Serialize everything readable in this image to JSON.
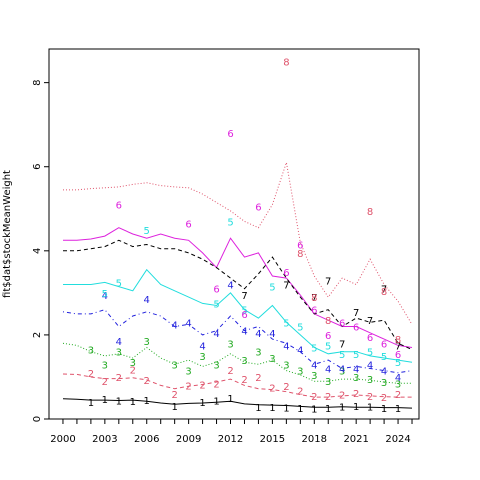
{
  "chart_data": {
    "type": "line",
    "title": "",
    "xlabel": "",
    "ylabel": "fit$dat$stockMeanWeight",
    "xlim": [
      1999,
      2025.5
    ],
    "ylim": [
      0,
      8.8
    ],
    "x_ticks": [
      "2000",
      "2003",
      "2006",
      "2009",
      "2012",
      "2015",
      "2018",
      "2021",
      "2024"
    ],
    "x_tick_values": [
      2000,
      2003,
      2006,
      2009,
      2012,
      2015,
      2018,
      2021,
      2024
    ],
    "y_ticks": [
      "0",
      "2",
      "4",
      "6",
      "8"
    ],
    "y_tick_values": [
      0,
      2,
      4,
      6,
      8
    ],
    "grid": false,
    "legend": "none",
    "series": [
      {
        "label": "1",
        "color": "#000000",
        "line": "solid",
        "fit_x": [
          2000,
          2001,
          2002,
          2003,
          2004,
          2005,
          2006,
          2007,
          2008,
          2009,
          2010,
          2011,
          2012,
          2013,
          2014,
          2015,
          2016,
          2017,
          2018,
          2019,
          2020,
          2021,
          2022,
          2023,
          2024,
          2025
        ],
        "fit_y": [
          0.48,
          0.47,
          0.45,
          0.45,
          0.44,
          0.45,
          0.42,
          0.38,
          0.35,
          0.37,
          0.38,
          0.4,
          0.42,
          0.36,
          0.34,
          0.33,
          0.32,
          0.3,
          0.28,
          0.28,
          0.29,
          0.28,
          0.28,
          0.27,
          0.27,
          0.26
        ],
        "obs_x": [
          2002,
          2003,
          2004,
          2005,
          2006,
          2008,
          2010,
          2011,
          2012,
          2014,
          2015,
          2016,
          2017,
          2018,
          2019,
          2020,
          2021,
          2022,
          2023,
          2024
        ],
        "obs_y": [
          0.4,
          0.48,
          0.44,
          0.43,
          0.45,
          0.31,
          0.41,
          0.44,
          0.5,
          0.29,
          0.28,
          0.27,
          0.26,
          0.25,
          0.26,
          0.3,
          0.31,
          0.3,
          0.26,
          0.26
        ]
      },
      {
        "label": "2",
        "color": "#DF536B",
        "line": "dashed",
        "fit_x": [
          2000,
          2001,
          2002,
          2003,
          2004,
          2005,
          2006,
          2007,
          2008,
          2009,
          2010,
          2011,
          2012,
          2013,
          2014,
          2015,
          2016,
          2017,
          2018,
          2019,
          2020,
          2021,
          2022,
          2023,
          2024,
          2025
        ],
        "fit_y": [
          1.07,
          1.06,
          1.0,
          0.96,
          0.96,
          0.98,
          0.93,
          0.8,
          0.72,
          0.78,
          0.82,
          0.88,
          0.95,
          0.8,
          0.72,
          0.7,
          0.65,
          0.58,
          0.52,
          0.52,
          0.55,
          0.57,
          0.55,
          0.53,
          0.52,
          0.52
        ],
        "obs_x": [
          2002,
          2003,
          2004,
          2005,
          2006,
          2008,
          2009,
          2010,
          2011,
          2012,
          2013,
          2014,
          2015,
          2016,
          2017,
          2018,
          2019,
          2020,
          2021,
          2022,
          2023,
          2024
        ],
        "obs_y": [
          1.1,
          0.9,
          1.0,
          1.18,
          0.93,
          0.6,
          0.8,
          0.82,
          0.85,
          1.17,
          0.95,
          1.0,
          0.75,
          0.78,
          0.68,
          0.55,
          0.55,
          0.58,
          0.62,
          0.55,
          0.52,
          0.6
        ]
      },
      {
        "label": "3",
        "color": "#22AA22",
        "line": "dotted",
        "fit_x": [
          2000,
          2001,
          2002,
          2003,
          2004,
          2005,
          2006,
          2007,
          2008,
          2009,
          2010,
          2011,
          2012,
          2013,
          2014,
          2015,
          2016,
          2017,
          2018,
          2019,
          2020,
          2021,
          2022,
          2023,
          2024,
          2025
        ],
        "fit_y": [
          1.8,
          1.75,
          1.6,
          1.5,
          1.55,
          1.45,
          1.7,
          1.45,
          1.3,
          1.4,
          1.25,
          1.35,
          1.55,
          1.35,
          1.3,
          1.4,
          1.15,
          1.05,
          0.9,
          0.9,
          0.95,
          0.95,
          0.92,
          0.88,
          0.85,
          0.85
        ],
        "obs_x": [
          2002,
          2003,
          2004,
          2005,
          2006,
          2008,
          2009,
          2010,
          2011,
          2012,
          2013,
          2014,
          2015,
          2016,
          2017,
          2018,
          2019,
          2020,
          2021,
          2022,
          2023,
          2024
        ],
        "obs_y": [
          1.65,
          1.3,
          1.6,
          1.35,
          1.85,
          1.3,
          1.15,
          1.5,
          1.3,
          1.8,
          1.4,
          1.6,
          1.45,
          1.3,
          1.15,
          1.05,
          0.9,
          1.15,
          1.0,
          0.95,
          0.88,
          0.85
        ]
      },
      {
        "label": "4",
        "color": "#2222DD",
        "line": "dotdash",
        "fit_x": [
          2000,
          2001,
          2002,
          2003,
          2004,
          2005,
          2006,
          2007,
          2008,
          2009,
          2010,
          2011,
          2012,
          2013,
          2014,
          2015,
          2016,
          2017,
          2018,
          2019,
          2020,
          2021,
          2022,
          2023,
          2024,
          2025
        ],
        "fit_y": [
          2.55,
          2.5,
          2.5,
          2.6,
          2.2,
          2.45,
          2.55,
          2.45,
          2.2,
          2.25,
          2.0,
          2.1,
          2.45,
          2.1,
          2.2,
          1.9,
          1.8,
          1.6,
          1.3,
          1.4,
          1.2,
          1.25,
          1.2,
          1.15,
          1.1,
          1.15
        ],
        "obs_x": [
          2003,
          2004,
          2006,
          2008,
          2009,
          2010,
          2011,
          2012,
          2013,
          2014,
          2015,
          2016,
          2017,
          2018,
          2019,
          2020,
          2021,
          2022,
          2023,
          2024
        ],
        "obs_y": [
          2.95,
          1.85,
          2.85,
          2.25,
          2.3,
          1.75,
          2.05,
          3.2,
          2.1,
          2.05,
          2.05,
          1.75,
          1.65,
          1.3,
          1.2,
          1.2,
          1.2,
          1.3,
          1.15,
          1.0
        ]
      },
      {
        "label": "5",
        "color": "#22DDDD",
        "line": "solid",
        "fit_x": [
          2000,
          2001,
          2002,
          2003,
          2004,
          2005,
          2006,
          2007,
          2008,
          2009,
          2010,
          2011,
          2012,
          2013,
          2014,
          2015,
          2016,
          2017,
          2018,
          2019,
          2020,
          2021,
          2022,
          2023,
          2024,
          2025
        ],
        "fit_y": [
          3.2,
          3.2,
          3.2,
          3.25,
          3.15,
          3.05,
          3.55,
          3.2,
          3.05,
          2.9,
          2.75,
          2.7,
          3.0,
          2.6,
          2.4,
          2.7,
          2.3,
          2.0,
          1.7,
          1.55,
          1.6,
          1.6,
          1.5,
          1.45,
          1.4,
          1.35
        ],
        "obs_x": [
          2003,
          2004,
          2006,
          2011,
          2012,
          2013,
          2015,
          2016,
          2017,
          2018,
          2019,
          2020,
          2021,
          2022,
          2023,
          2024
        ],
        "obs_y": [
          3.0,
          3.25,
          4.5,
          2.75,
          4.7,
          2.6,
          3.15,
          2.3,
          2.2,
          1.7,
          1.75,
          1.55,
          1.55,
          1.6,
          1.5,
          1.35
        ]
      },
      {
        "label": "6",
        "color": "#DD22DD",
        "line": "solid",
        "fit_x": [
          2000,
          2001,
          2002,
          2003,
          2004,
          2005,
          2006,
          2007,
          2008,
          2009,
          2010,
          2011,
          2012,
          2013,
          2014,
          2015,
          2016,
          2017,
          2018,
          2019,
          2020,
          2021,
          2022,
          2023,
          2024,
          2025
        ],
        "fit_y": [
          4.25,
          4.25,
          4.28,
          4.35,
          4.55,
          4.4,
          4.3,
          4.4,
          4.3,
          4.25,
          3.95,
          3.6,
          4.3,
          3.85,
          3.95,
          3.4,
          3.35,
          2.95,
          2.5,
          2.35,
          2.2,
          2.2,
          2.05,
          1.9,
          1.75,
          1.7
        ],
        "obs_x": [
          2004,
          2009,
          2011,
          2012,
          2013,
          2014,
          2016,
          2017,
          2018,
          2019,
          2020,
          2021,
          2022,
          2023,
          2024
        ],
        "obs_y": [
          5.1,
          4.65,
          3.1,
          6.8,
          2.5,
          5.05,
          3.5,
          4.15,
          2.6,
          2.0,
          2.3,
          2.2,
          1.95,
          1.8,
          1.55
        ]
      },
      {
        "label": "7",
        "color": "#000000",
        "line": "dashed",
        "fit_x": [
          2000,
          2001,
          2002,
          2003,
          2004,
          2005,
          2006,
          2007,
          2008,
          2009,
          2010,
          2011,
          2012,
          2013,
          2014,
          2015,
          2016,
          2017,
          2018,
          2019,
          2020,
          2021,
          2022,
          2023,
          2024,
          2025
        ],
        "fit_y": [
          4.0,
          4.0,
          4.05,
          4.1,
          4.25,
          4.1,
          4.15,
          4.05,
          4.05,
          3.95,
          3.8,
          3.6,
          3.35,
          3.1,
          3.45,
          3.85,
          3.35,
          2.9,
          2.5,
          2.6,
          2.2,
          2.4,
          2.3,
          2.35,
          1.8,
          1.65
        ],
        "obs_x": [
          2013,
          2016,
          2018,
          2019,
          2020,
          2021,
          2022,
          2023,
          2024
        ],
        "obs_y": [
          2.95,
          3.2,
          2.9,
          3.3,
          1.8,
          2.55,
          2.35,
          3.1,
          1.75
        ]
      },
      {
        "label": "8",
        "color": "#DF536B",
        "line": "dotted",
        "fit_x": [
          2000,
          2001,
          2002,
          2003,
          2004,
          2005,
          2006,
          2007,
          2008,
          2009,
          2010,
          2011,
          2012,
          2013,
          2014,
          2015,
          2016,
          2017,
          2018,
          2019,
          2020,
          2021,
          2022,
          2023,
          2024,
          2025
        ],
        "fit_y": [
          5.45,
          5.45,
          5.48,
          5.5,
          5.52,
          5.58,
          5.62,
          5.55,
          5.52,
          5.5,
          5.35,
          5.15,
          4.95,
          4.7,
          4.55,
          5.1,
          6.1,
          4.2,
          3.4,
          2.9,
          3.35,
          3.2,
          3.8,
          3.2,
          2.8,
          2.25
        ],
        "obs_x": [
          2016,
          2017,
          2018,
          2019,
          2022,
          2023,
          2024
        ],
        "obs_y": [
          8.5,
          3.95,
          2.9,
          2.35,
          4.95,
          3.05,
          1.9
        ]
      }
    ]
  }
}
